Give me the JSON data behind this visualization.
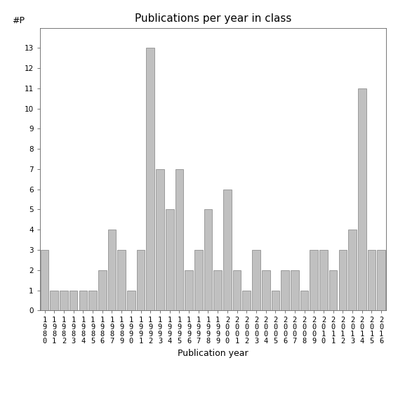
{
  "years": [
    "1980",
    "1981",
    "1982",
    "1983",
    "1984",
    "1985",
    "1986",
    "1987",
    "1989",
    "1990",
    "1991",
    "1992",
    "1993",
    "1994",
    "1995",
    "1996",
    "1997",
    "1998",
    "1999",
    "2000",
    "2001",
    "2002",
    "2003",
    "2004",
    "2005",
    "2006",
    "2007",
    "2008",
    "2009",
    "2010",
    "2011",
    "2012",
    "2013",
    "2014",
    "2015",
    "2016"
  ],
  "values": [
    3,
    1,
    1,
    1,
    1,
    1,
    2,
    4,
    3,
    1,
    3,
    13,
    7,
    5,
    7,
    2,
    3,
    5,
    2,
    6,
    2,
    1,
    3,
    2,
    1,
    2,
    2,
    1,
    3,
    3,
    2,
    3,
    4,
    11,
    3,
    3
  ],
  "bar_color": "#c0c0c0",
  "bar_edgecolor": "#808080",
  "title": "Publications per year in class",
  "xlabel": "Publication year",
  "ylabel": "#P",
  "ylim": [
    0,
    14
  ],
  "yticks": [
    0,
    1,
    2,
    3,
    4,
    5,
    6,
    7,
    8,
    9,
    10,
    11,
    12,
    13
  ],
  "bg_color": "#ffffff",
  "title_fontsize": 11,
  "label_fontsize": 9,
  "tick_fontsize": 7.5
}
